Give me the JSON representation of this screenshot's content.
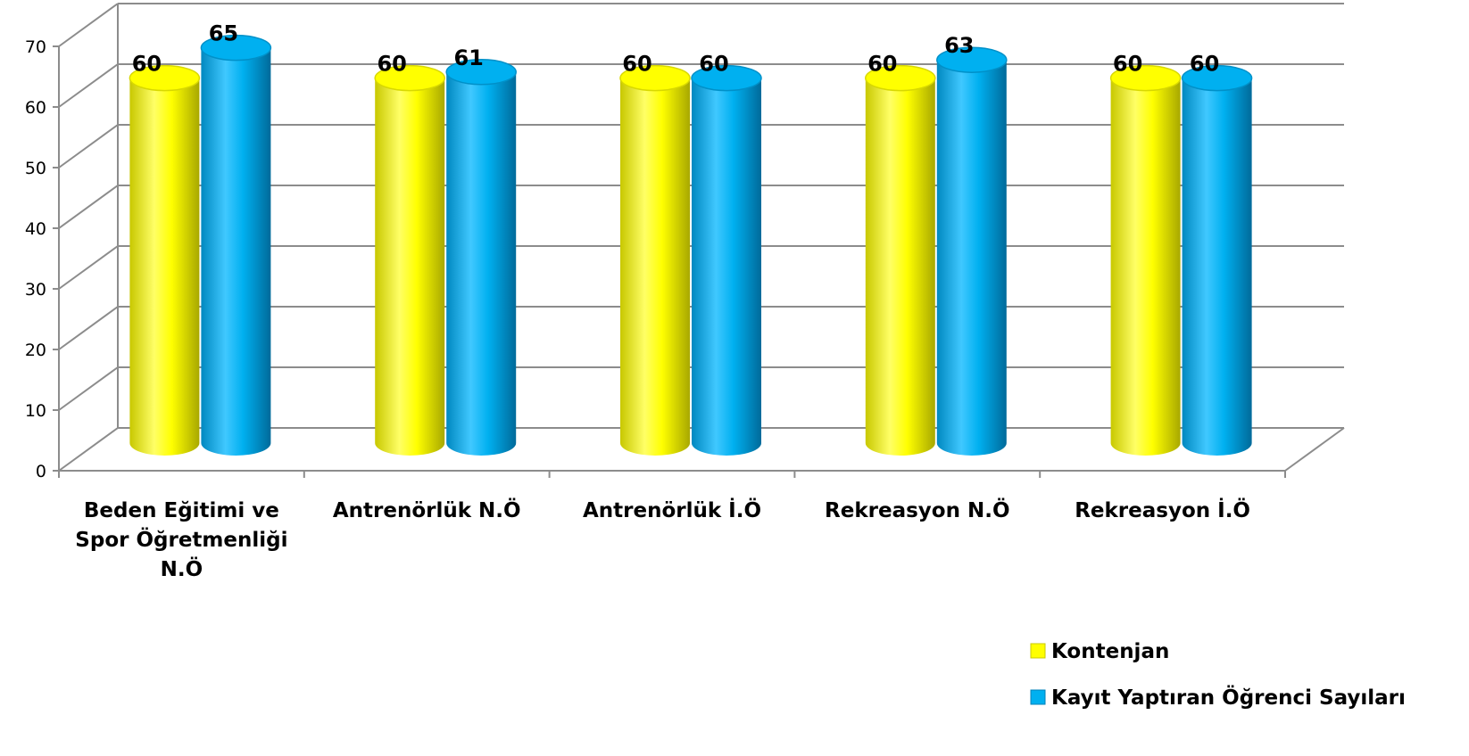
{
  "chart_data": {
    "type": "bar",
    "title": "",
    "xlabel": "",
    "ylabel": "",
    "ylim": [
      0,
      70
    ],
    "yticks": [
      0,
      10,
      20,
      30,
      40,
      50,
      60,
      70
    ],
    "grid": true,
    "legend_position": "bottom-right",
    "categories": [
      [
        "Beden Eğitimi ve",
        "Spor Öğretmenliği",
        "N.Ö"
      ],
      [
        "Antrenörlük N.Ö"
      ],
      [
        "Antrenörlük İ.Ö"
      ],
      [
        "Rekreasyon N.Ö"
      ],
      [
        "Rekreasyon İ.Ö"
      ]
    ],
    "series": [
      {
        "name": "Kontenjan",
        "color": "#ffff00",
        "values": [
          60,
          60,
          60,
          60,
          60
        ]
      },
      {
        "name": "Kayıt Yaptıran Öğrenci Sayıları",
        "color": "#00b0f0",
        "values": [
          65,
          61,
          60,
          63,
          60
        ]
      }
    ]
  }
}
